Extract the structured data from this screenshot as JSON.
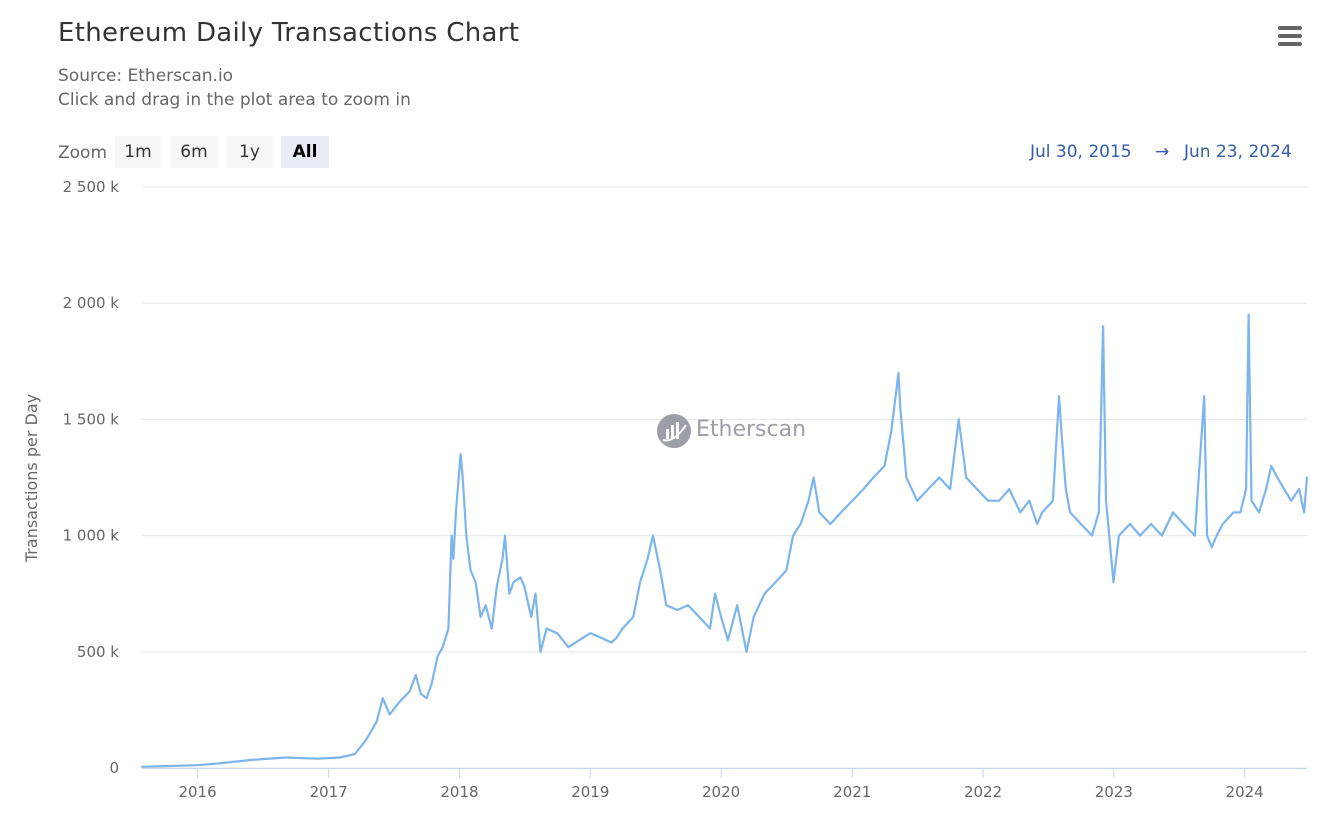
{
  "header": {
    "title": "Ethereum Daily Transactions Chart",
    "source": "Source: Etherscan.io",
    "hint": "Click and drag in the plot area to zoom in"
  },
  "menu": {
    "icon": "hamburger-menu-icon"
  },
  "zoom": {
    "label": "Zoom",
    "buttons": [
      "1m",
      "6m",
      "1y",
      "All"
    ],
    "selected": "All"
  },
  "range": {
    "from": "Jul 30, 2015",
    "arrow": "→",
    "to": "Jun 23, 2024"
  },
  "watermark": {
    "text": "Etherscan",
    "icon": "etherscan-logo-icon"
  },
  "colors": {
    "line": "#7cb5ec",
    "grid": "#e6e6e6",
    "axis_text": "#666666",
    "range_text": "#335cad"
  },
  "chart_data": {
    "type": "line",
    "title": "Ethereum Daily Transactions Chart",
    "subtitle": "Source: Etherscan.io",
    "xlabel": "",
    "ylabel": "Transactions per Day",
    "xlim": [
      "2015-07-30",
      "2024-06-23"
    ],
    "ylim": [
      0,
      2500000
    ],
    "yticks": [
      0,
      500000,
      1000000,
      1500000,
      2000000,
      2500000
    ],
    "ytick_labels": [
      "0",
      "500 k",
      "1 000 k",
      "1 500 k",
      "2 000 k",
      "2 500 k"
    ],
    "xtick_labels": [
      "2016",
      "2017",
      "2018",
      "2019",
      "2020",
      "2021",
      "2022",
      "2023",
      "2024"
    ],
    "grid": true,
    "legend": "none",
    "series": [
      {
        "x": [
          "2015-07-30",
          "2015-10-01",
          "2016-01-01",
          "2016-03-01",
          "2016-06-01",
          "2016-09-01",
          "2016-12-01",
          "2017-02-01",
          "2017-03-15",
          "2017-04-15",
          "2017-05-15",
          "2017-06-01",
          "2017-06-20",
          "2017-07-15",
          "2017-08-15",
          "2017-09-01",
          "2017-09-15",
          "2017-10-01",
          "2017-10-15",
          "2017-11-01",
          "2017-11-15",
          "2017-12-01",
          "2017-12-10",
          "2017-12-15",
          "2017-12-22",
          "2018-01-04",
          "2018-01-10",
          "2018-01-20",
          "2018-02-01",
          "2018-02-15",
          "2018-03-01",
          "2018-03-15",
          "2018-04-01",
          "2018-04-15",
          "2018-05-01",
          "2018-05-08",
          "2018-05-20",
          "2018-06-01",
          "2018-06-20",
          "2018-07-01",
          "2018-07-20",
          "2018-08-01",
          "2018-08-15",
          "2018-09-01",
          "2018-10-01",
          "2018-11-01",
          "2018-12-01",
          "2019-01-01",
          "2019-02-01",
          "2019-03-01",
          "2019-03-15",
          "2019-04-01",
          "2019-05-01",
          "2019-05-20",
          "2019-06-10",
          "2019-06-25",
          "2019-07-15",
          "2019-08-01",
          "2019-09-01",
          "2019-10-01",
          "2019-11-01",
          "2019-12-01",
          "2019-12-15",
          "2020-01-01",
          "2020-01-20",
          "2020-02-15",
          "2020-03-12",
          "2020-04-01",
          "2020-05-01",
          "2020-06-01",
          "2020-07-01",
          "2020-07-20",
          "2020-08-10",
          "2020-09-01",
          "2020-09-15",
          "2020-10-01",
          "2020-11-01",
          "2020-12-01",
          "2021-01-01",
          "2021-02-01",
          "2021-03-01",
          "2021-04-01",
          "2021-04-20",
          "2021-05-10",
          "2021-05-15",
          "2021-06-01",
          "2021-07-01",
          "2021-08-01",
          "2021-09-01",
          "2021-10-01",
          "2021-10-25",
          "2021-11-15",
          "2021-12-15",
          "2022-01-15",
          "2022-02-15",
          "2022-03-15",
          "2022-04-15",
          "2022-05-10",
          "2022-06-01",
          "2022-06-15",
          "2022-07-15",
          "2022-08-01",
          "2022-08-10",
          "2022-08-20",
          "2022-09-01",
          "2022-10-01",
          "2022-11-01",
          "2022-11-20",
          "2022-12-02",
          "2022-12-10",
          "2022-12-31",
          "2023-01-15",
          "2023-02-15",
          "2023-03-15",
          "2023-04-15",
          "2023-05-15",
          "2023-06-15",
          "2023-07-15",
          "2023-08-15",
          "2023-09-10",
          "2023-09-18",
          "2023-10-01",
          "2023-10-15",
          "2023-11-01",
          "2023-12-01",
          "2023-12-20",
          "2024-01-05",
          "2024-01-12",
          "2024-01-20",
          "2024-02-10",
          "2024-03-01",
          "2024-03-15",
          "2024-04-01",
          "2024-04-20",
          "2024-05-10",
          "2024-06-01",
          "2024-06-15",
          "2024-06-23"
        ],
        "y": [
          5000,
          8000,
          12000,
          20000,
          35000,
          45000,
          40000,
          45000,
          60000,
          120000,
          200000,
          300000,
          230000,
          280000,
          330000,
          400000,
          320000,
          300000,
          360000,
          480000,
          520000,
          600000,
          1000000,
          900000,
          1100000,
          1350000,
          1250000,
          1000000,
          850000,
          800000,
          650000,
          700000,
          600000,
          780000,
          900000,
          1000000,
          750000,
          800000,
          820000,
          780000,
          650000,
          750000,
          500000,
          600000,
          580000,
          520000,
          550000,
          580000,
          560000,
          540000,
          560000,
          600000,
          650000,
          800000,
          900000,
          1000000,
          850000,
          700000,
          680000,
          700000,
          650000,
          600000,
          750000,
          650000,
          550000,
          700000,
          500000,
          650000,
          750000,
          800000,
          850000,
          1000000,
          1050000,
          1150000,
          1250000,
          1100000,
          1050000,
          1100000,
          1150000,
          1200000,
          1250000,
          1300000,
          1450000,
          1700000,
          1550000,
          1250000,
          1150000,
          1200000,
          1250000,
          1200000,
          1500000,
          1250000,
          1200000,
          1150000,
          1150000,
          1200000,
          1100000,
          1150000,
          1050000,
          1100000,
          1150000,
          1600000,
          1400000,
          1200000,
          1100000,
          1050000,
          1000000,
          1100000,
          1900000,
          1150000,
          800000,
          1000000,
          1050000,
          1000000,
          1050000,
          1000000,
          1100000,
          1050000,
          1000000,
          1600000,
          1000000,
          950000,
          1000000,
          1050000,
          1100000,
          1100000,
          1200000,
          1950000,
          1150000,
          1100000,
          1200000,
          1300000,
          1250000,
          1200000,
          1150000,
          1200000,
          1100000,
          1250000
        ]
      }
    ]
  }
}
